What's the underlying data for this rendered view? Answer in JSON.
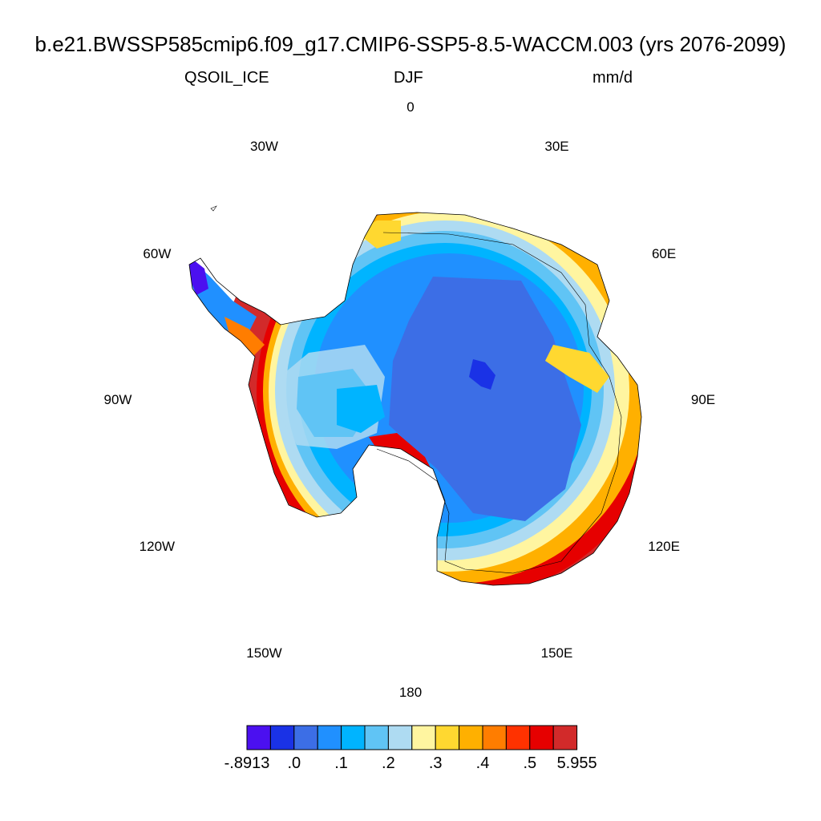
{
  "title": "b.e21.BWSSP585cmip6.f09_g17.CMIP6-SSP5-8.5-WACCM.003 (yrs 2076-2099)",
  "left_string": "QSOIL_ICE",
  "center_string": "DJF",
  "right_string": "mm/d",
  "longitude_labels": [
    "0",
    "30E",
    "60E",
    "90E",
    "120E",
    "150E",
    "180",
    "150W",
    "120W",
    "90W",
    "60W",
    "30W"
  ],
  "colorbar": {
    "colors": [
      "#4b10f0",
      "#1a32e6",
      "#3c6ee6",
      "#2090ff",
      "#00b4ff",
      "#60c4f5",
      "#aedbf2",
      "#fff5a0",
      "#ffd830",
      "#ffb000",
      "#ff7d00",
      "#ff3200",
      "#e60000",
      "#d22a2a"
    ],
    "labels": [
      "-.8913",
      ".0",
      ".1",
      ".2",
      ".3",
      ".4",
      ".5",
      "5.955"
    ]
  }
}
